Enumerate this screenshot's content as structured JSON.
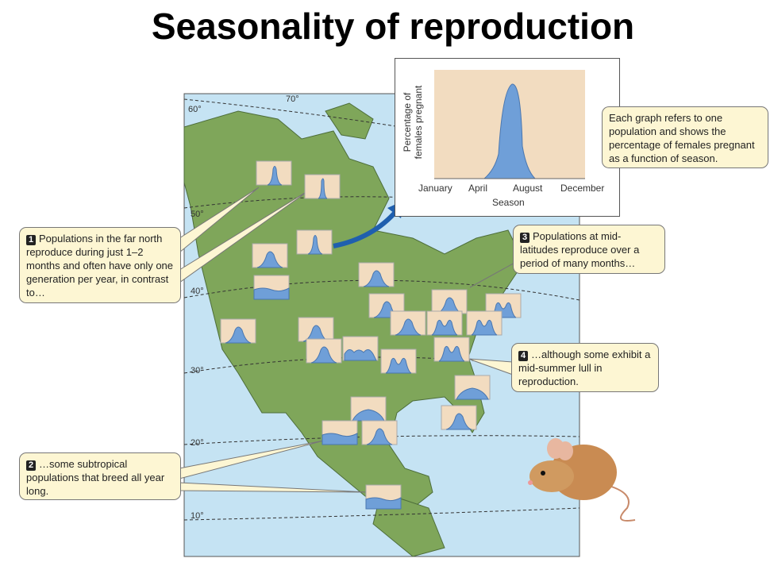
{
  "title": "Seasonality of reproduction",
  "latitudes": [
    "70°",
    "60°",
    "50°",
    "40°",
    "30°",
    "20°",
    "10°"
  ],
  "inset": {
    "ylabel_line1": "Percentage of",
    "ylabel_line2": "females pregnant",
    "xticks": [
      "January",
      "April",
      "August",
      "December"
    ],
    "xlabel": "Season"
  },
  "callouts": [
    {
      "num": "",
      "text": "Each graph refers to one population and shows the percentage of females pregnant as a function of season."
    },
    {
      "num": "1",
      "text": "Populations in the far north reproduce during just 1–2 months and often have only one generation per year, in contrast to…"
    },
    {
      "num": "2",
      "text": "…some subtropical populations that breed all year long."
    },
    {
      "num": "3",
      "text": "Populations at mid-latitudes reproduce over a period of many months…"
    },
    {
      "num": "4",
      "text": "…although some exhibit a mid-summer lull in reproduction."
    }
  ],
  "populations": [
    "narrow",
    "very-narrow",
    "narrow",
    "single",
    "flat",
    "single",
    "single",
    "single",
    "bimodal",
    "single",
    "single",
    "single",
    "bimodal",
    "bimodal",
    "single",
    "multi",
    "bimodal",
    "bimodal",
    "broad",
    "broad",
    "single",
    "flat",
    "single",
    "flat"
  ],
  "colors": {
    "ocean": "#c5e3f3",
    "land": "#7fa65a",
    "graph_bg": "#f2dcc0",
    "curve": "#6f9fd8",
    "callout": "#fdf6d3",
    "arrow": "#1f5fae"
  }
}
